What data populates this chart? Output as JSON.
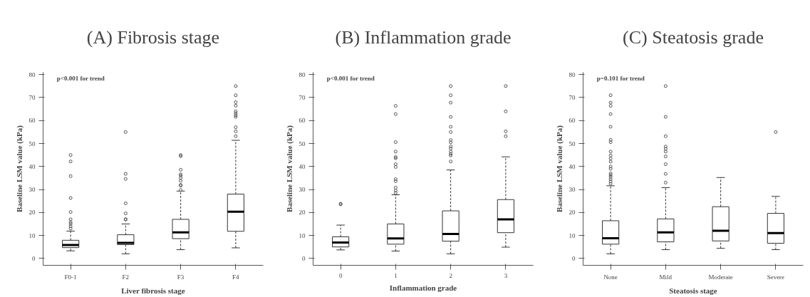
{
  "chart_data": [
    {
      "type": "box",
      "title": "(A) Fibrosis stage",
      "xlabel": "Liver fibrosis stage",
      "ylabel": "Baseline LSM value (kPa)",
      "annotations": [
        "p<0.001 for trend"
      ],
      "categories": [
        "F0-1",
        "F2",
        "F3",
        "F4"
      ],
      "ylim": [
        -3,
        81
      ],
      "yticks": [
        0,
        10,
        20,
        30,
        40,
        50,
        60,
        70,
        80
      ],
      "grid": false,
      "boxes": [
        {
          "low": 3.3,
          "q1": 4.7,
          "median": 5.8,
          "q3": 7.9,
          "high": 11.9,
          "outliers": [
            13,
            14,
            15,
            15.7,
            17,
            20.2,
            26.3,
            35.8,
            42.2,
            45
          ]
        },
        {
          "low": 2,
          "q1": 6,
          "median": 6.8,
          "q3": 10.3,
          "high": 15,
          "outliers": [
            16.9,
            17.1,
            19.6,
            24,
            34.6,
            36.8,
            55
          ]
        },
        {
          "low": 3.8,
          "q1": 8.6,
          "median": 11.3,
          "q3": 17,
          "high": 29.3,
          "outliers": [
            29.8,
            31.7,
            32,
            33.8,
            35,
            36,
            36.6,
            38.6,
            44.5,
            45
          ]
        },
        {
          "low": 4.6,
          "q1": 11.8,
          "median": 20.3,
          "q3": 28,
          "high": 51.4,
          "outliers": [
            53.2,
            55.3,
            57.1,
            61.6,
            62.3,
            63.2,
            64,
            66.5,
            68,
            71,
            75
          ]
        }
      ]
    },
    {
      "type": "box",
      "title": "(B) Inflammation grade",
      "xlabel": "Inflammation grade",
      "ylabel": "Baseline LSM value (kPa)",
      "annotations": [
        "p<0.001 for trend"
      ],
      "categories": [
        "0",
        "1",
        "2",
        "3"
      ],
      "ylim": [
        -3,
        81
      ],
      "yticks": [
        0,
        10,
        20,
        30,
        40,
        50,
        60,
        70,
        80
      ],
      "grid": false,
      "boxes": [
        {
          "low": 3.7,
          "q1": 5,
          "median": 6.9,
          "q3": 9.4,
          "high": 14.5,
          "outliers": [
            23.5,
            23.8
          ]
        },
        {
          "low": 3.2,
          "q1": 6.2,
          "median": 8.7,
          "q3": 15,
          "high": 27.7,
          "outliers": [
            28.5,
            29.5,
            30.8,
            33.6,
            34.5,
            39.8,
            41,
            43.6,
            44.1,
            46.5,
            50.6,
            62.8,
            66.4
          ]
        },
        {
          "low": 2,
          "q1": 7.5,
          "median": 10.6,
          "q3": 20.7,
          "high": 38.5,
          "outliers": [
            42.2,
            44.8,
            45.5,
            46.5,
            47.8,
            48.7,
            50.5,
            51.5,
            55,
            57.3,
            61.6,
            67.8,
            71,
            75
          ]
        },
        {
          "low": 4.9,
          "q1": 11.2,
          "median": 17,
          "q3": 25.6,
          "high": 44.2,
          "outliers": [
            53.2,
            55.3,
            64,
            75
          ]
        }
      ]
    },
    {
      "type": "box",
      "title": "(C) Steatosis grade",
      "xlabel": "Steatosis stage",
      "ylabel": "Baseline LSM value (kPa)",
      "annotations": [
        "p=0.101 for trend"
      ],
      "categories": [
        "None",
        "Mild",
        "Moderate",
        "Severe"
      ],
      "ylim": [
        -3,
        81
      ],
      "yticks": [
        0,
        10,
        20,
        30,
        40,
        50,
        60,
        70,
        80
      ],
      "grid": false,
      "boxes": [
        {
          "low": 2,
          "q1": 6.2,
          "median": 8.8,
          "q3": 16.4,
          "high": 31.6,
          "outliers": [
            32.5,
            33.5,
            34.5,
            35.5,
            36.3,
            37,
            39,
            40,
            42.1,
            43.5,
            44.8,
            46.5,
            50.6,
            51.6,
            57.3,
            62.8,
            66.4,
            67.8,
            71
          ]
        },
        {
          "low": 3.8,
          "q1": 7.2,
          "median": 11.3,
          "q3": 17.2,
          "high": 30.8,
          "outliers": [
            33,
            36.8,
            41,
            44.4,
            46.5,
            47.7,
            48.7,
            53.2,
            61.6,
            75
          ]
        },
        {
          "low": 4.4,
          "q1": 7.6,
          "median": 12,
          "q3": 22.5,
          "high": 35.2
        },
        {
          "low": 3.8,
          "q1": 6.6,
          "median": 11,
          "q3": 19.6,
          "high": 27,
          "outliers": [
            55
          ]
        }
      ]
    }
  ]
}
